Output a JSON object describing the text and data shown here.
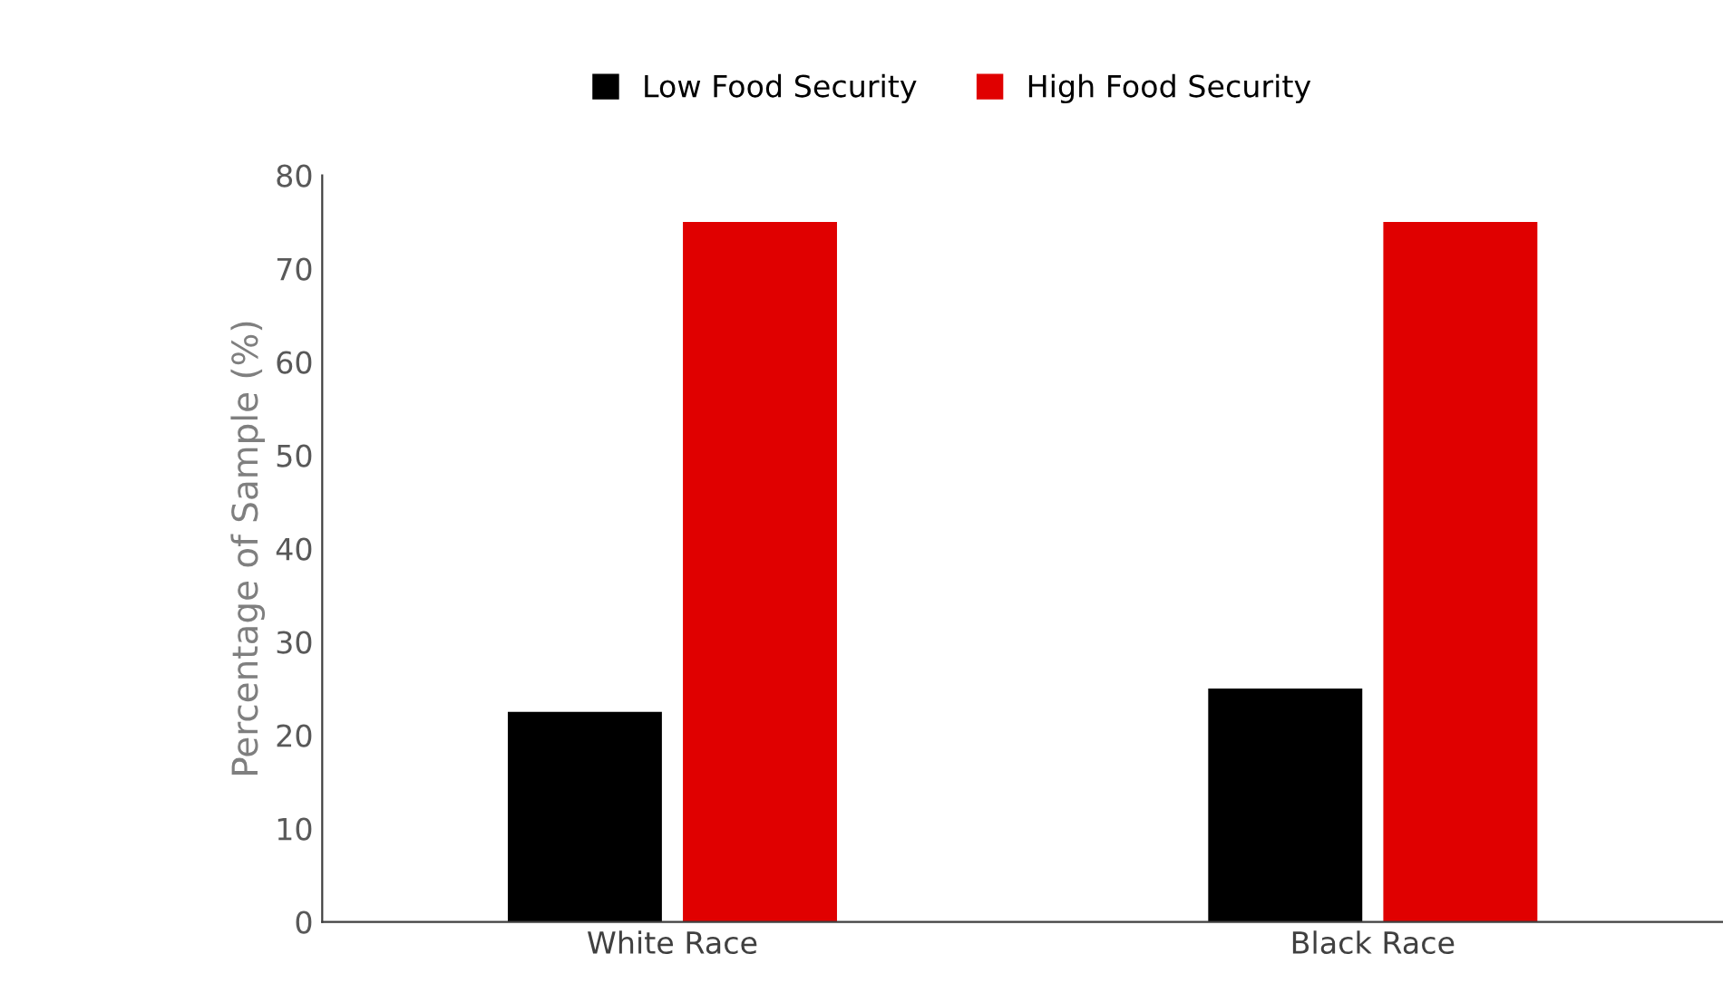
{
  "chart_data": {
    "type": "bar",
    "ylabel": "Percentage of Sample (%)",
    "categories": [
      "White Race",
      "Black Race"
    ],
    "series": [
      {
        "name": "Low Food Security",
        "color": "#000000",
        "values": [
          22.5,
          25
        ]
      },
      {
        "name": "High Food Security",
        "color": "#e00000",
        "values": [
          75,
          75
        ]
      }
    ],
    "ylim": [
      0,
      80
    ],
    "yticks": [
      0,
      10,
      20,
      30,
      40,
      50,
      60,
      70,
      80
    ],
    "grid": false,
    "legend": "top"
  }
}
